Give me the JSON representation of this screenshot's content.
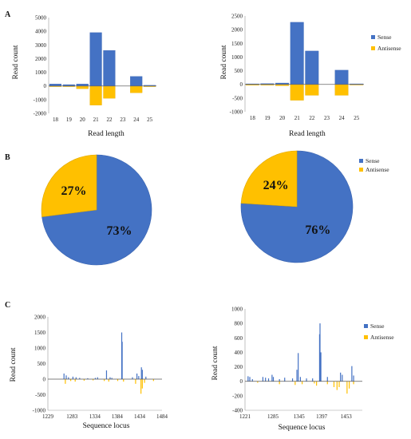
{
  "panel_labels": [
    "A",
    "B",
    "C"
  ],
  "colors": {
    "sense": "#4472C4",
    "antisense": "#FFC000"
  },
  "chart_data": [
    {
      "type": "bar",
      "panel": "A",
      "categories": [
        "18",
        "19",
        "20",
        "21",
        "22",
        "23",
        "24",
        "25"
      ],
      "series": [
        {
          "values": [
            150,
            100,
            150,
            3900,
            2600,
            0,
            700,
            50
          ]
        },
        {
          "values": [
            -50,
            -50,
            -200,
            -1400,
            -900,
            0,
            -500,
            -50
          ]
        }
      ],
      "xlabel": "Read length",
      "ylabel": "Read count",
      "ylim": [
        -2000,
        5000
      ],
      "yticks": [
        "-2000",
        "-1000",
        "0",
        "1000",
        "2000",
        "3000",
        "4000",
        "5000"
      ]
    },
    {
      "type": "bar",
      "panel": "A",
      "categories": [
        "18",
        "19",
        "20",
        "21",
        "22",
        "23",
        "24",
        "25"
      ],
      "series": [
        {
          "name": "Sense",
          "values": [
            20,
            30,
            50,
            2270,
            1220,
            0,
            520,
            20
          ]
        },
        {
          "name": "Antisense",
          "values": [
            -30,
            -30,
            -50,
            -580,
            -400,
            0,
            -400,
            -20
          ]
        }
      ],
      "xlabel": "Read length",
      "ylabel": "Read count",
      "ylim": [
        -1000,
        2500
      ],
      "yticks": [
        "-1000",
        "-500",
        "0",
        "500",
        "1000",
        "1500",
        "2000",
        "2500"
      ],
      "legend_position": "right"
    },
    {
      "type": "pie",
      "panel": "B",
      "labels": [
        "Sense",
        "Antisense"
      ],
      "values": [
        73,
        27
      ],
      "value_labels": [
        "73%",
        "27%"
      ]
    },
    {
      "type": "pie",
      "panel": "B",
      "labels": [
        "Sense",
        "Antisense"
      ],
      "values": [
        76,
        24
      ],
      "value_labels": [
        "76%",
        "24%"
      ],
      "legend_position": "top-right"
    },
    {
      "type": "bar",
      "panel": "C",
      "x_range": [
        1229,
        1484
      ],
      "xticks": [
        "1229",
        "1283",
        "1334",
        "1384",
        "1434",
        "1484"
      ],
      "series": [
        {
          "points": [
            [
              1265,
              180
            ],
            [
              1270,
              120
            ],
            [
              1275,
              60
            ],
            [
              1285,
              80
            ],
            [
              1292,
              60
            ],
            [
              1300,
              40
            ],
            [
              1318,
              30
            ],
            [
              1335,
              40
            ],
            [
              1340,
              60
            ],
            [
              1360,
              280
            ],
            [
              1368,
              60
            ],
            [
              1372,
              40
            ],
            [
              1394,
              1500
            ],
            [
              1395,
              1200
            ],
            [
              1418,
              60
            ],
            [
              1428,
              180
            ],
            [
              1432,
              100
            ],
            [
              1438,
              380
            ],
            [
              1440,
              300
            ],
            [
              1448,
              80
            ]
          ]
        },
        {
          "points": [
            [
              1268,
              -150
            ],
            [
              1280,
              -60
            ],
            [
              1290,
              -80
            ],
            [
              1310,
              -50
            ],
            [
              1330,
              -40
            ],
            [
              1355,
              -60
            ],
            [
              1365,
              -80
            ],
            [
              1385,
              -60
            ],
            [
              1398,
              -80
            ],
            [
              1425,
              -150
            ],
            [
              1437,
              -470
            ],
            [
              1440,
              -300
            ],
            [
              1445,
              -120
            ],
            [
              1465,
              -60
            ]
          ]
        }
      ],
      "xlabel": "Sequence locus",
      "ylabel": "Read count",
      "ylim": [
        -1000,
        2000
      ],
      "yticks": [
        "-1000",
        "-500",
        "0",
        "500",
        "1000",
        "1500",
        "2000"
      ]
    },
    {
      "type": "bar",
      "panel": "C",
      "x_range": [
        1221,
        1490
      ],
      "xticks": [
        "1221",
        "1285",
        "1345",
        "1397",
        "1453"
      ],
      "series": [
        {
          "name": "Sense",
          "points": [
            [
              1228,
              70
            ],
            [
              1232,
              60
            ],
            [
              1238,
              30
            ],
            [
              1262,
              60
            ],
            [
              1268,
              50
            ],
            [
              1275,
              40
            ],
            [
              1283,
              90
            ],
            [
              1286,
              60
            ],
            [
              1300,
              30
            ],
            [
              1312,
              50
            ],
            [
              1330,
              40
            ],
            [
              1340,
              160
            ],
            [
              1343,
              390
            ],
            [
              1348,
              60
            ],
            [
              1362,
              40
            ],
            [
              1376,
              40
            ],
            [
              1392,
              650
            ],
            [
              1393,
              800
            ],
            [
              1395,
              400
            ],
            [
              1410,
              60
            ],
            [
              1440,
              120
            ],
            [
              1444,
              90
            ],
            [
              1466,
              210
            ],
            [
              1470,
              80
            ]
          ]
        },
        {
          "name": "Antisense",
          "points": [
            [
              1250,
              -20
            ],
            [
              1300,
              -40
            ],
            [
              1336,
              -50
            ],
            [
              1352,
              -40
            ],
            [
              1380,
              -30
            ],
            [
              1385,
              -60
            ],
            [
              1410,
              -40
            ],
            [
              1425,
              -80
            ],
            [
              1432,
              -120
            ],
            [
              1437,
              -80
            ],
            [
              1455,
              -170
            ],
            [
              1460,
              -100
            ],
            [
              1470,
              -40
            ]
          ]
        }
      ],
      "xlabel": "Sequence locus",
      "ylabel": "Read count",
      "ylim": [
        -400,
        1000
      ],
      "yticks": [
        "-400",
        "-200",
        "0",
        "200",
        "400",
        "600",
        "800",
        "1000"
      ],
      "legend_position": "right"
    }
  ]
}
